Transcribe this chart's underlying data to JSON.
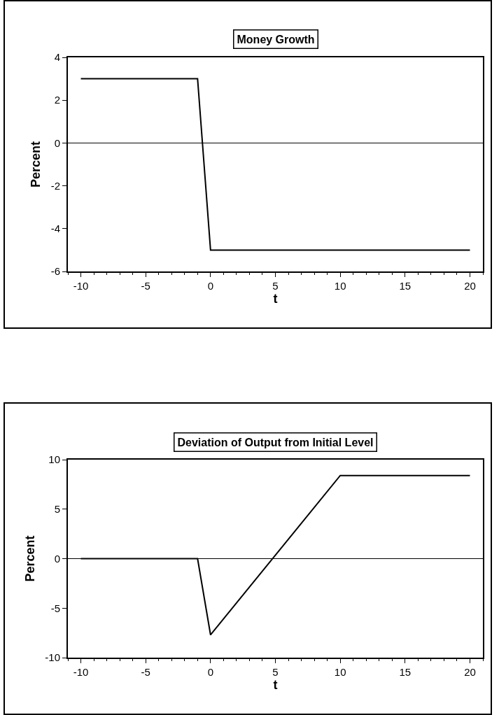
{
  "chart_data": [
    {
      "type": "line",
      "title": "Money Growth",
      "xlabel": "t",
      "ylabel": "Percent",
      "x": [
        -10,
        -1,
        0,
        20
      ],
      "values": [
        3,
        3,
        -5,
        -5
      ],
      "color": "#000000",
      "xlim": [
        -11,
        21
      ],
      "xticks": [
        -10,
        -5,
        0,
        5,
        10,
        15,
        20
      ],
      "ylim": [
        -6,
        4
      ],
      "yticks": [
        -6,
        -4,
        -2,
        0,
        2,
        4
      ],
      "ref_lines": [
        {
          "axis": "y",
          "value": 0,
          "color": "#000000"
        }
      ],
      "grid": false,
      "marker": "none",
      "line_style": "solid"
    },
    {
      "type": "line",
      "title": "Deviation of Output from Initial Level",
      "xlabel": "t",
      "ylabel": "Percent",
      "x": [
        -10,
        -1,
        0,
        10,
        20
      ],
      "values": [
        0,
        0,
        -7.7,
        8.4,
        8.4
      ],
      "color": "#000000",
      "xlim": [
        -11,
        21
      ],
      "xticks": [
        -10,
        -5,
        0,
        5,
        10,
        15,
        20
      ],
      "ylim": [
        -10,
        10
      ],
      "yticks": [
        -10,
        -5,
        0,
        5,
        10
      ],
      "ref_lines": [
        {
          "axis": "y",
          "value": 0,
          "color": "#000000"
        }
      ],
      "grid": false,
      "marker": "none",
      "line_style": "solid"
    }
  ]
}
